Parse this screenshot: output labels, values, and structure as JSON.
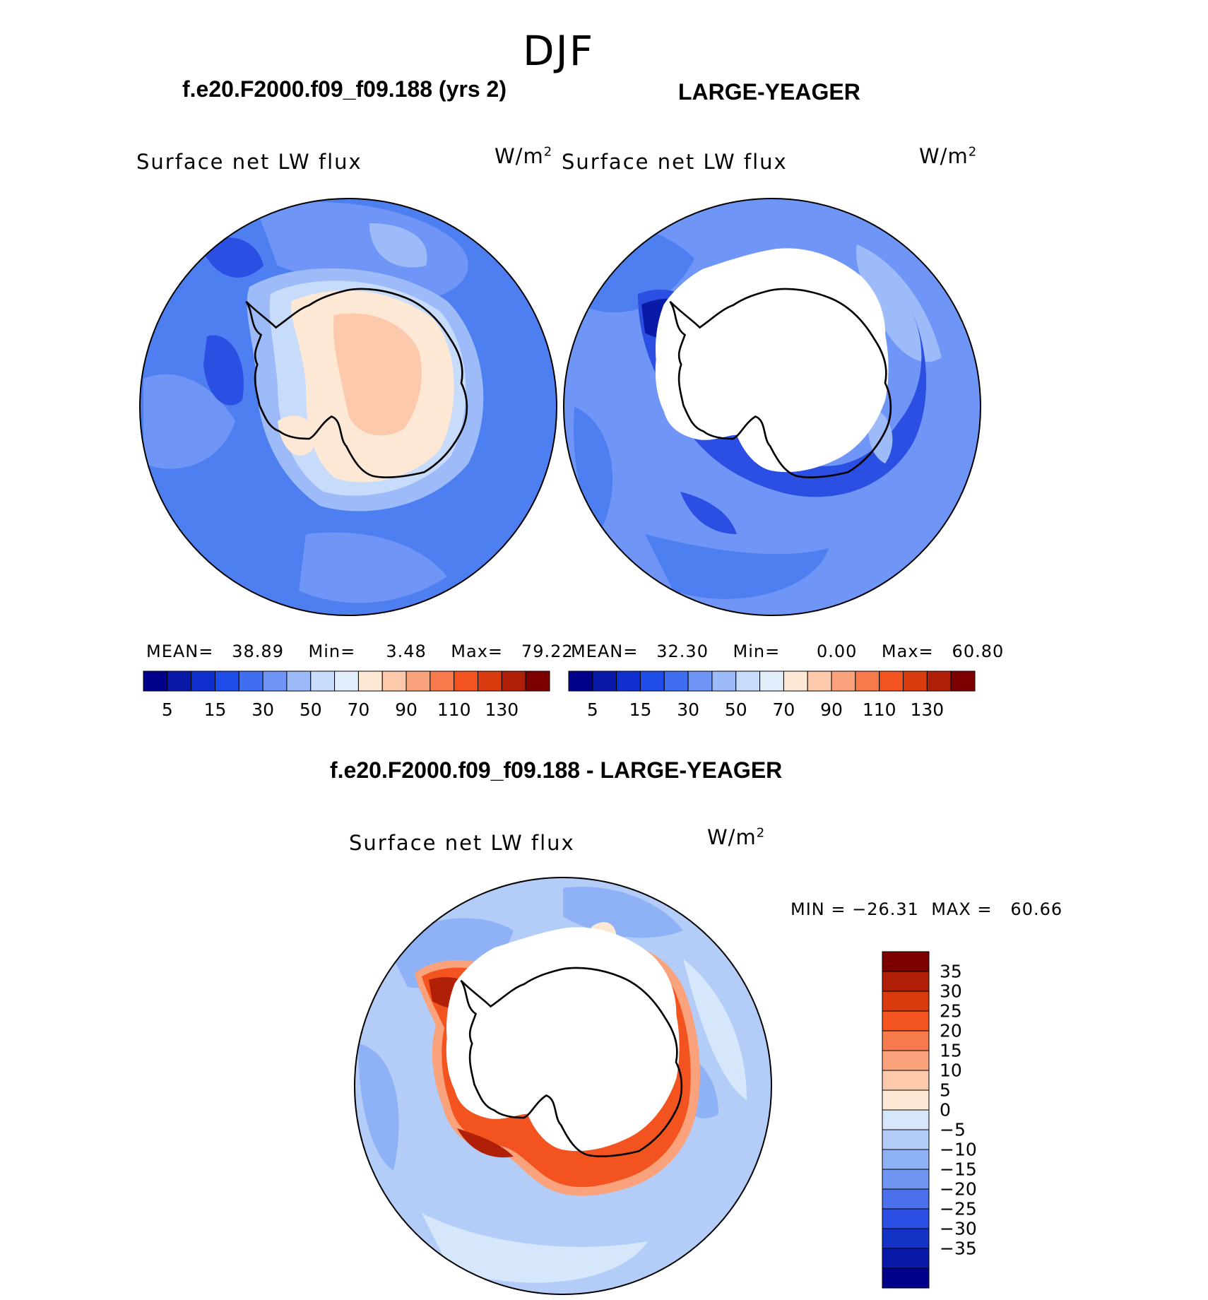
{
  "season": "DJF",
  "panels": [
    {
      "case_title": "f.e20.F2000.f09_f09.188 (yrs 2)",
      "variable": "Surface net LW flux",
      "units": "W/m",
      "units_exp": "2",
      "mean_label": "MEAN=",
      "mean": "38.89",
      "min_label": "Min=",
      "min": "3.48",
      "max_label": "Max=",
      "max": "79.22"
    },
    {
      "case_title": "LARGE-YEAGER",
      "variable": "Surface net LW flux",
      "units": "W/m",
      "units_exp": "2",
      "mean_label": "MEAN=",
      "mean": "32.30",
      "min_label": "Min=",
      "min": "0.00",
      "max_label": "Max=",
      "max": "60.80"
    }
  ],
  "horizontal_colorbar": {
    "colors": [
      "#00008b",
      "#0a1aa8",
      "#0f2fd0",
      "#1f4be8",
      "#3f6ef0",
      "#6f95f7",
      "#9dbbf9",
      "#c7dbfb",
      "#e2eefc",
      "#fde7d5",
      "#fcc9ad",
      "#f9a27c",
      "#f77a4c",
      "#f3541f",
      "#d93b0e",
      "#b01f07",
      "#7d0000"
    ],
    "tick_labels": [
      "5",
      "15",
      "30",
      "50",
      "70",
      "90",
      "110",
      "130"
    ]
  },
  "diff": {
    "title": "f.e20.F2000.f09_f09.188 - LARGE-YEAGER",
    "variable": "Surface net LW flux",
    "units": "W/m",
    "units_exp": "2",
    "min_label": "MIN =",
    "min": "−26.31",
    "max_label": "MAX =",
    "max": "60.66",
    "colorbar": {
      "colors": [
        "#7d0000",
        "#b01f07",
        "#d93b0e",
        "#f3541f",
        "#f77a4c",
        "#f9a27c",
        "#fcc9ad",
        "#fde7d5",
        "#d6e6fb",
        "#b4cdf8",
        "#8fb1f5",
        "#6e95f2",
        "#4a70ec",
        "#2a4fe2",
        "#1233c6",
        "#0a1aa8",
        "#00008b"
      ],
      "tick_labels": [
        "35",
        "30",
        "25",
        "20",
        "15",
        "10",
        "5",
        "0",
        "−5",
        "−10",
        "−15",
        "−20",
        "−25",
        "−30",
        "−35"
      ]
    }
  }
}
